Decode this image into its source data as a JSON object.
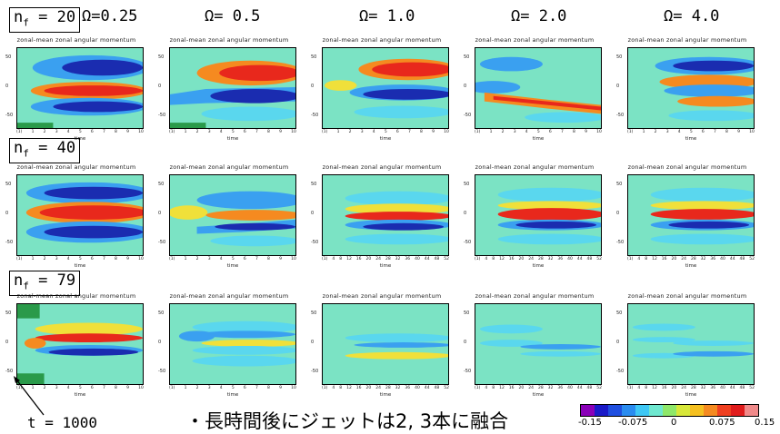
{
  "rows": [
    {
      "label_base": "n",
      "label_sub": "f",
      "label_value": "= 20"
    },
    {
      "label_base": "n",
      "label_sub": "f",
      "label_value": "= 40"
    },
    {
      "label_base": "n",
      "label_sub": "f",
      "label_value": "= 79"
    }
  ],
  "omegas": [
    "Ω=0.25",
    "Ω= 0.5",
    "Ω= 1.0",
    "Ω= 2.0",
    "Ω= 4.0"
  ],
  "panel_title": "zonal-mean zonal angular momentum",
  "time_label": "time",
  "y_ticks": [
    "50",
    "0",
    "-50"
  ],
  "x_unit": "(x10^1)",
  "x_ticks_standard": [
    "(1)",
    "1",
    "2",
    "3",
    "4",
    "5",
    "6",
    "7",
    "8",
    "9",
    "10"
  ],
  "x_ticks_long": [
    "(1)",
    "4",
    "8",
    "12",
    "16",
    "20",
    "24",
    "28",
    "32",
    "36",
    "40",
    "44",
    "48",
    "52"
  ],
  "annotation_time": "t = 1000",
  "note": "・長時間後にジェットは2, 3本に融合",
  "colorbar": {
    "colors": [
      "#8a00b8",
      "#1a1ac8",
      "#1f4fe0",
      "#2a8cf0",
      "#3fc8f5",
      "#6fe8d0",
      "#8fe86a",
      "#d8e83a",
      "#f5c020",
      "#f58a20",
      "#f04020",
      "#e01c1c",
      "#f08a8a"
    ],
    "tick_labels": [
      "-0.15",
      "-0.075",
      "0",
      "0.075",
      "0.15"
    ]
  }
}
